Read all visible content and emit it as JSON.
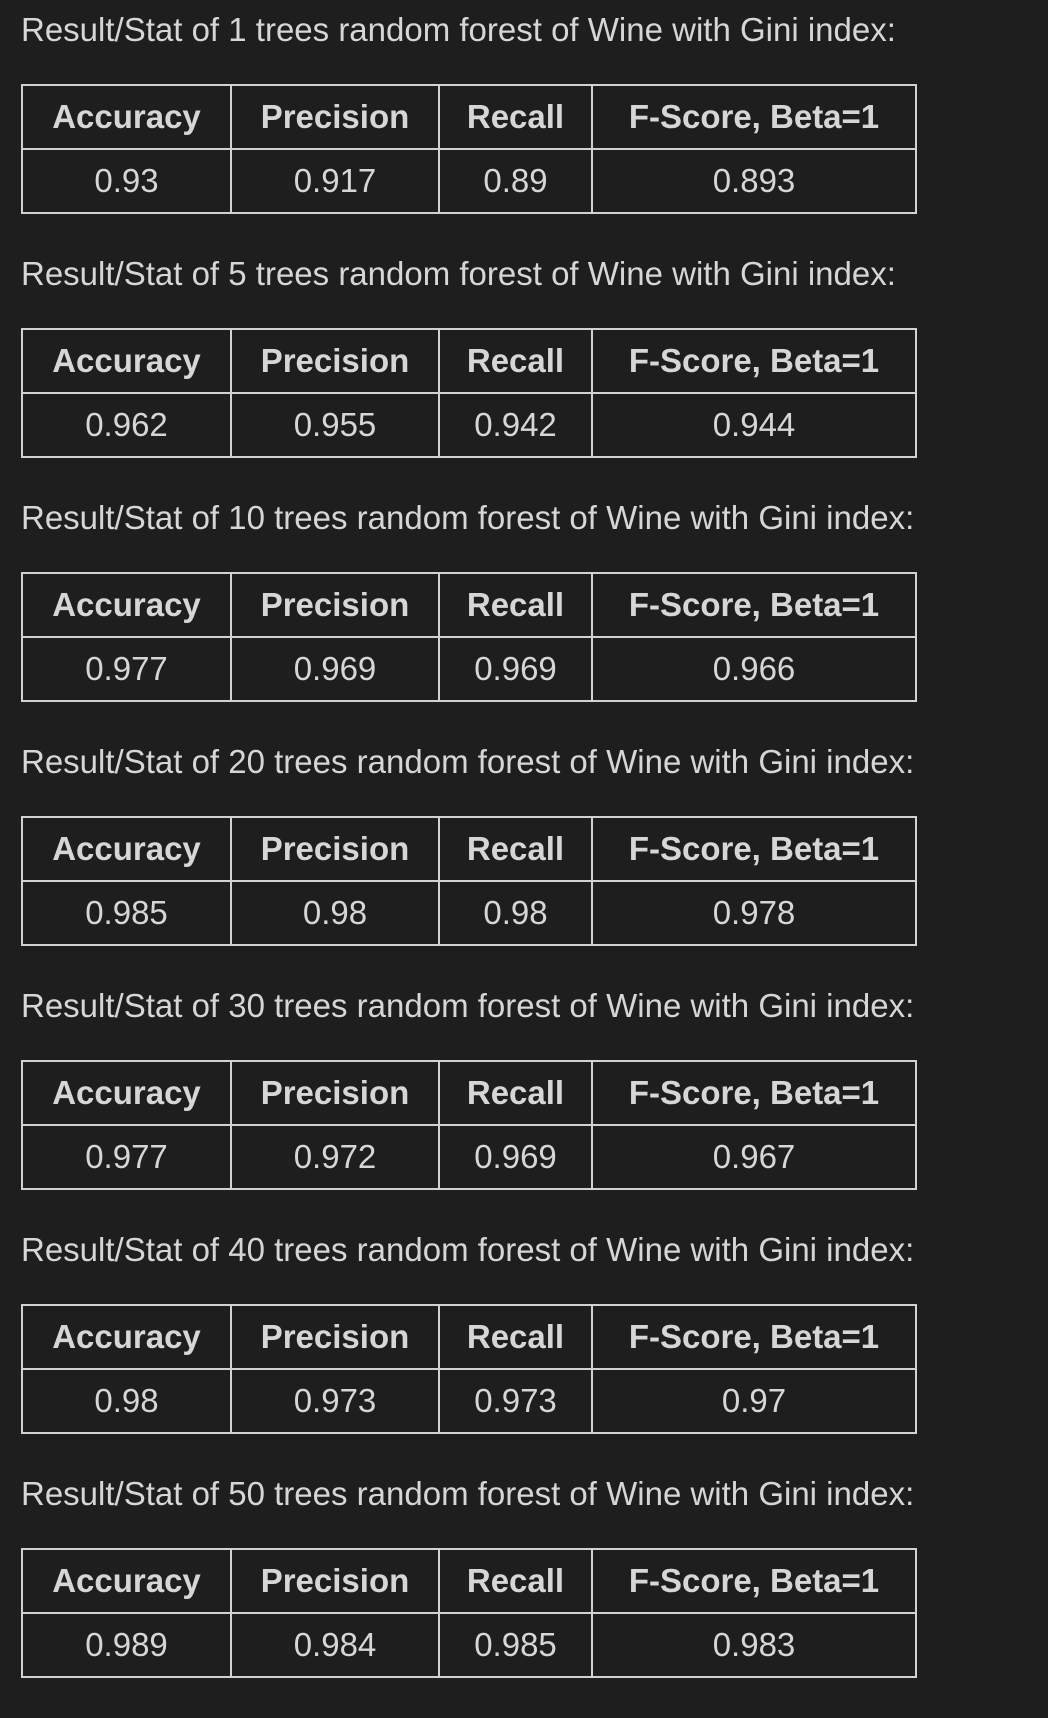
{
  "headers": {
    "accuracy": "Accuracy",
    "precision": "Precision",
    "recall": "Recall",
    "fscore": "F-Score, Beta=1"
  },
  "results": [
    {
      "caption": "Result/Stat of 1 trees random forest of Wine with Gini index:",
      "accuracy": "0.93",
      "precision": "0.917",
      "recall": "0.89",
      "fscore": "0.893"
    },
    {
      "caption": "Result/Stat of 5 trees random forest of Wine with Gini index:",
      "accuracy": "0.962",
      "precision": "0.955",
      "recall": "0.942",
      "fscore": "0.944"
    },
    {
      "caption": "Result/Stat of 10 trees random forest of Wine with Gini index:",
      "accuracy": "0.977",
      "precision": "0.969",
      "recall": "0.969",
      "fscore": "0.966"
    },
    {
      "caption": "Result/Stat of 20 trees random forest of Wine with Gini index:",
      "accuracy": "0.985",
      "precision": "0.98",
      "recall": "0.98",
      "fscore": "0.978"
    },
    {
      "caption": "Result/Stat of 30 trees random forest of Wine with Gini index:",
      "accuracy": "0.977",
      "precision": "0.972",
      "recall": "0.969",
      "fscore": "0.967"
    },
    {
      "caption": "Result/Stat of 40 trees random forest of Wine with Gini index:",
      "accuracy": "0.98",
      "precision": "0.973",
      "recall": "0.973",
      "fscore": "0.97"
    },
    {
      "caption": "Result/Stat of 50 trees random forest of Wine with Gini index:",
      "accuracy": "0.989",
      "precision": "0.984",
      "recall": "0.985",
      "fscore": "0.983"
    }
  ]
}
